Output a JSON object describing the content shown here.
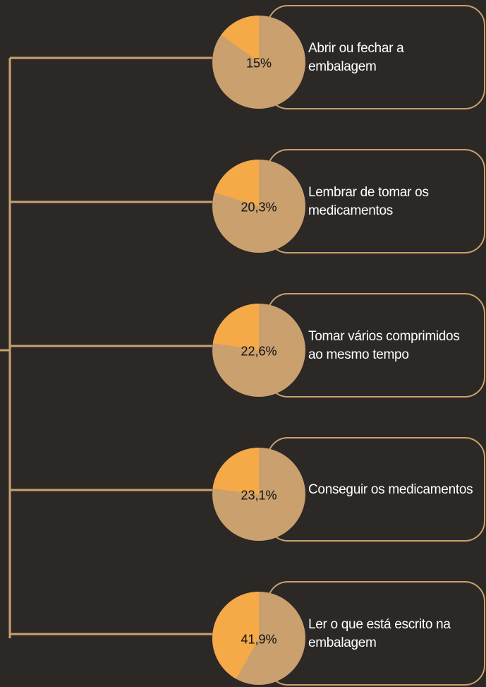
{
  "chart_data": {
    "type": "pie",
    "categories": [
      "Abrir ou fechar a embalagem",
      "Lembrar de tomar os medicamentos",
      "Tomar vários comprimidos ao mesmo tempo",
      "Conseguir os medicamentos",
      "Ler o que está escrito na embalagem"
    ],
    "values": [
      15,
      20.3,
      22.6,
      23.1,
      41.9
    ],
    "value_labels": [
      "15%",
      "20,3%",
      "22,6%",
      "23,1%",
      "41,9%"
    ],
    "color": "#f5a947",
    "rest_color": "#c9a06e"
  }
}
